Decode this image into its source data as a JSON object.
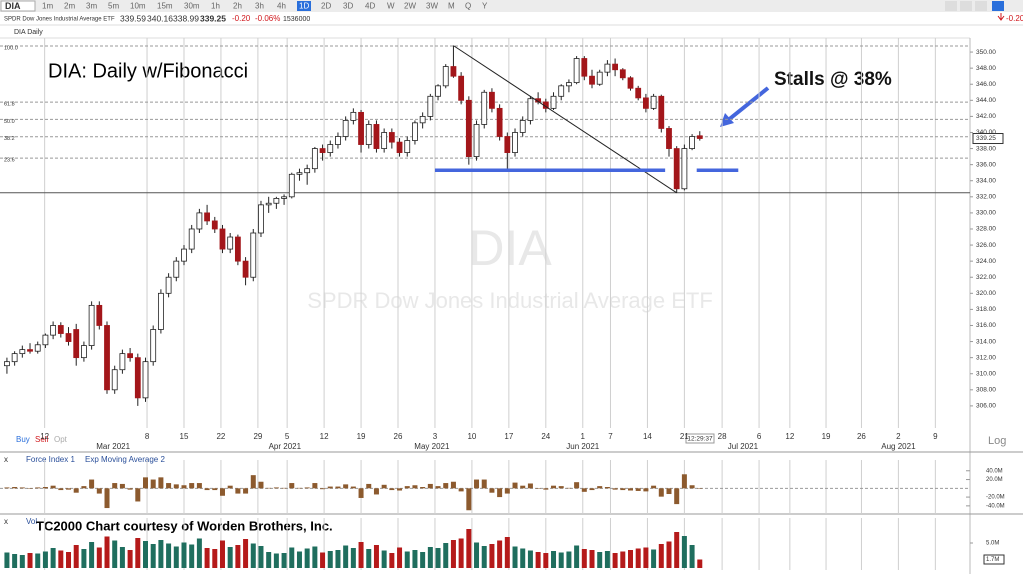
{
  "toolbar": {
    "symbol": "DIA",
    "timeframes": [
      "1m",
      "2m",
      "3m",
      "5m",
      "10m",
      "15m",
      "30m",
      "1h",
      "2h",
      "3h",
      "4h",
      "1D",
      "2D",
      "3D",
      "4D",
      "W",
      "2W",
      "3W",
      "M",
      "Q",
      "Y"
    ],
    "active_index": 11
  },
  "quote": {
    "name": "SPDR Dow Jones Industrial Average ETF",
    "open": "339.59",
    "high": "340.16",
    "low": "338.99",
    "last": "339.25",
    "change": "-0.20",
    "change_pct": "-0.06%",
    "volume": "1536000"
  },
  "order_buttons": [
    "Buy",
    "Sell",
    "Opt"
  ],
  "scale_mode": "Log",
  "chart_data": [
    {
      "type": "candlestick",
      "title": "DIA Daily",
      "annotations": {
        "heading": "DIA:  Daily w/Fibonacci",
        "note": "Stalls @ 38%",
        "time": "12:29:37"
      },
      "watermark": {
        "symbol": "DIA",
        "name": "SPDR Dow Jones Industrial Average ETF"
      },
      "series": [
        {
          "name": "DIA",
          "up_color": "#ffffff",
          "down_color": "#a3161a",
          "open": [
            311,
            311.5,
            312.5,
            313,
            312.8,
            313.6,
            314.8,
            316,
            315,
            315.5,
            312,
            313.5,
            318.5,
            316,
            308,
            310.5,
            312.5,
            312,
            307,
            311.5,
            315.5,
            320,
            322,
            324,
            325.5,
            328,
            330,
            329,
            328,
            325.5,
            327,
            324,
            322,
            327.5,
            331,
            331.2,
            331.8,
            332,
            334.8,
            335,
            335.5,
            338,
            337.5,
            338.5,
            339.5,
            341.5,
            342.5,
            338.5,
            341,
            338,
            340,
            338.8,
            337.5,
            339,
            341.2,
            342,
            344.5,
            345.8,
            348.2,
            347,
            344,
            337,
            341,
            345,
            343,
            339.5,
            337.5,
            340,
            341.5,
            344.2,
            343.8,
            343,
            344.5,
            345.8,
            346.2,
            349.2,
            347,
            346,
            347.5,
            348.5,
            347.8,
            346.8,
            345.5,
            344.3,
            343,
            344.5,
            340.5,
            338,
            333,
            338,
            339.59
          ],
          "high": [
            312,
            312.8,
            313.5,
            313.8,
            314,
            315,
            316.5,
            316.4,
            315.8,
            316.2,
            314,
            319,
            319,
            316.5,
            311,
            313,
            313.2,
            312.5,
            312,
            316,
            320.5,
            322.5,
            324.5,
            326,
            328.5,
            330.5,
            331,
            329.5,
            328.5,
            327.5,
            327.3,
            324.5,
            328,
            331.5,
            332,
            332,
            332.3,
            335,
            335.5,
            336,
            338.2,
            338.5,
            339,
            340,
            342,
            343,
            342.8,
            341.5,
            341.5,
            340.5,
            340.5,
            339.3,
            339.5,
            341.5,
            342.5,
            344.8,
            346,
            348.5,
            350.8,
            347.5,
            344.5,
            341.5,
            345.3,
            345.5,
            343.5,
            340,
            340.5,
            342,
            344.5,
            345,
            344.2,
            345,
            346,
            346.6,
            349.5,
            349.5,
            347.8,
            347.8,
            349,
            349.2,
            348,
            347,
            345.8,
            344.8,
            344.8,
            344.7,
            340.8,
            338.3,
            338.5,
            339.8,
            340.16
          ],
          "low": [
            310,
            311,
            312,
            312.5,
            312.5,
            313.2,
            314.3,
            314.5,
            313.5,
            311,
            311.5,
            313,
            315.5,
            307.5,
            307.5,
            310,
            311.5,
            306,
            306.5,
            311,
            315,
            319.5,
            321.5,
            323.5,
            325,
            327.5,
            328.5,
            327.5,
            325,
            325,
            323.5,
            321,
            321.5,
            327,
            330,
            330.5,
            331,
            331.8,
            334,
            333.5,
            335,
            336.5,
            337,
            338,
            339,
            341,
            337.5,
            338,
            337.5,
            337.5,
            338,
            337,
            337,
            338.5,
            340.5,
            341.5,
            344,
            345.5,
            346.8,
            343.5,
            336,
            336.5,
            340.5,
            342.5,
            339,
            335.2,
            337,
            339.5,
            341,
            343.5,
            342.5,
            342.8,
            344,
            345,
            346,
            346.5,
            345.5,
            345.8,
            347,
            347,
            346.5,
            345.2,
            344,
            342.5,
            342.8,
            340,
            337,
            332.5,
            332.8,
            337.8,
            338.99
          ],
          "close": [
            311.5,
            312.5,
            313,
            312.8,
            313.6,
            314.8,
            316,
            315,
            314,
            312,
            313.5,
            318.5,
            316,
            308,
            310.5,
            312.5,
            312,
            307,
            311.5,
            315.5,
            320,
            322,
            324,
            325.5,
            328,
            330,
            329,
            328,
            325.5,
            327,
            324,
            322,
            327.5,
            331,
            331.2,
            331.8,
            332,
            334.8,
            335,
            335.5,
            338,
            337.5,
            338.5,
            339.5,
            341.5,
            342.5,
            338.5,
            341,
            338,
            340,
            338.8,
            337.5,
            339,
            341.2,
            342,
            344.5,
            345.8,
            348.2,
            347,
            344,
            337,
            341,
            345,
            343,
            339.5,
            337.5,
            340,
            341.5,
            344.2,
            343.8,
            343,
            344.5,
            345.8,
            346.2,
            349.2,
            347,
            346,
            347.5,
            348.5,
            347.8,
            346.8,
            345.5,
            344.3,
            343,
            344.5,
            340.5,
            338,
            333,
            338,
            339.5,
            339.25
          ]
        }
      ],
      "xlim": [
        -0.9,
        125.1
      ],
      "xticks": [
        {
          "value": 4.9,
          "label": "12"
        },
        {
          "value": 18.2,
          "label": "8"
        },
        {
          "value": 23,
          "label": "15"
        },
        {
          "value": 27.8,
          "label": "22"
        },
        {
          "value": 32.6,
          "label": "29"
        },
        {
          "value": 36.4,
          "label": "5"
        },
        {
          "value": 41.2,
          "label": "12"
        },
        {
          "value": 46,
          "label": "19"
        },
        {
          "value": 50.8,
          "label": "26"
        },
        {
          "value": 55.6,
          "label": "3"
        },
        {
          "value": 60.4,
          "label": "10"
        },
        {
          "value": 65.2,
          "label": "17"
        },
        {
          "value": 70,
          "label": "24"
        },
        {
          "value": 74.8,
          "label": "1"
        },
        {
          "value": 78.4,
          "label": "7"
        },
        {
          "value": 83.2,
          "label": "14"
        },
        {
          "value": 88,
          "label": "21"
        },
        {
          "value": 92.9,
          "label": "28"
        },
        {
          "value": 97.7,
          "label": "6"
        },
        {
          "value": 101.7,
          "label": "12"
        },
        {
          "value": 106.4,
          "label": "19"
        },
        {
          "value": 111,
          "label": "26"
        },
        {
          "value": 115.8,
          "label": "2"
        },
        {
          "value": 120.6,
          "label": "9"
        }
      ],
      "month_ticks": [
        {
          "value": 13.8,
          "label": "Mar 2021"
        },
        {
          "value": 36.1,
          "label": "Apr 2021"
        },
        {
          "value": 55.2,
          "label": "May 2021"
        },
        {
          "value": 74.8,
          "label": "Jun 2021"
        },
        {
          "value": 95.6,
          "label": "Jul 2021"
        },
        {
          "value": 115.8,
          "label": "Aug 2021"
        }
      ],
      "ylim": [
        303.5,
        351.5
      ],
      "yticks": [
        {
          "value": 306,
          "label": "306.00"
        },
        {
          "value": 308,
          "label": "308.00"
        },
        {
          "value": 310,
          "label": "310.00"
        },
        {
          "value": 312,
          "label": "312.00"
        },
        {
          "value": 314,
          "label": "314.00"
        },
        {
          "value": 316,
          "label": "316.00"
        },
        {
          "value": 318,
          "label": "318.00"
        },
        {
          "value": 320,
          "label": "320.00"
        },
        {
          "value": 322,
          "label": "322.00"
        },
        {
          "value": 324,
          "label": "324.00"
        },
        {
          "value": 326,
          "label": "326.00"
        },
        {
          "value": 328,
          "label": "328.00"
        },
        {
          "value": 330,
          "label": "330.00"
        },
        {
          "value": 332,
          "label": "332.00"
        },
        {
          "value": 334,
          "label": "334.00"
        },
        {
          "value": 336,
          "label": "336.00"
        },
        {
          "value": 338,
          "label": "338.00"
        },
        {
          "value": 340,
          "label": "340.00"
        },
        {
          "value": 342,
          "label": "342.00"
        },
        {
          "value": 344,
          "label": "344.00"
        },
        {
          "value": 346,
          "label": "346.00"
        },
        {
          "value": 348,
          "label": "348.00"
        },
        {
          "value": 350,
          "label": "350.00"
        }
      ],
      "fib_levels": [
        {
          "value": 350.75,
          "label": "100.0"
        },
        {
          "value": 343.78,
          "label": "61.8"
        },
        {
          "value": 341.63,
          "label": "50.0"
        },
        {
          "value": 339.47,
          "label": "38.2"
        },
        {
          "value": 336.81,
          "label": "23.6"
        }
      ],
      "fib_base": 332.5,
      "drawings": {
        "trendline": {
          "x": [
            58,
            87
          ],
          "y": [
            350.8,
            332.5
          ],
          "color": "#222222"
        },
        "support": {
          "y": 335.3,
          "color": "#4466dd",
          "segments": [
            [
              55.6,
              85.5
            ],
            [
              89.6,
              95
            ]
          ]
        }
      }
    },
    {
      "type": "bar",
      "series": [
        {
          "name": "Force Index 1",
          "color": "#8c5a2e",
          "values": [
            2,
            3,
            2,
            -1,
            2,
            3,
            6,
            -4,
            -3,
            -10,
            5,
            20,
            -12,
            -45,
            12,
            10,
            -3,
            -30,
            25,
            20,
            25,
            12,
            9,
            7,
            12,
            12,
            -4,
            -4,
            -17,
            6,
            -12,
            -12,
            30,
            15,
            1,
            2,
            1,
            12,
            1,
            2,
            12,
            -2,
            4,
            4,
            9,
            4,
            -22,
            10,
            -14,
            8,
            -4,
            -5,
            5,
            7,
            3,
            10,
            5,
            12,
            15,
            -7,
            -50,
            20,
            20,
            -10,
            -20,
            -12,
            13,
            6,
            11,
            -1,
            -3,
            6,
            5,
            1,
            14,
            -8,
            -4,
            5,
            3,
            -3,
            -4,
            -5,
            -6,
            -7,
            6,
            -19,
            -13,
            -36,
            32,
            7,
            -0.5
          ]
        }
      ],
      "overlay_label": "Exp Moving Average 2",
      "xlim": [
        -0.9,
        125.1
      ],
      "ylim": [
        -54,
        60
      ],
      "yticks": [
        {
          "value": 40,
          "label": "40.0M"
        },
        {
          "value": 20,
          "label": "20.0M"
        },
        {
          "value": -20,
          "label": "-20.0M"
        },
        {
          "value": -40,
          "label": "-40.0M"
        }
      ]
    },
    {
      "type": "volume",
      "title": "Vol",
      "annotation": "TC2000 Chart courtesy of Worden Brothers, Inc.",
      "series": [
        {
          "up_color": "#1f6e5e",
          "down_color": "#b51a1a",
          "values": [
            3.1,
            2.8,
            2.6,
            3.0,
            2.9,
            3.3,
            4.0,
            3.5,
            3.2,
            4.6,
            3.8,
            5.2,
            4.1,
            6.3,
            5.5,
            4.2,
            3.6,
            6.0,
            5.4,
            4.8,
            5.6,
            4.9,
            4.3,
            5.1,
            4.7,
            5.9,
            4.0,
            3.8,
            5.5,
            4.2,
            4.6,
            5.8,
            4.9,
            4.4,
            3.2,
            2.9,
            3.0,
            4.1,
            3.3,
            3.9,
            4.3,
            3.1,
            3.4,
            3.6,
            4.5,
            4.0,
            5.2,
            3.8,
            4.6,
            3.5,
            3.0,
            4.1,
            3.3,
            3.6,
            3.2,
            4.2,
            4.0,
            5.0,
            5.6,
            5.9,
            7.8,
            5.1,
            4.4,
            4.8,
            5.5,
            6.2,
            4.3,
            3.9,
            3.5,
            3.2,
            3.0,
            3.4,
            3.1,
            3.3,
            4.5,
            3.8,
            3.6,
            3.2,
            3.4,
            3.0,
            3.3,
            3.6,
            3.9,
            4.1,
            3.7,
            4.8,
            5.3,
            7.2,
            6.4,
            4.6,
            1.7
          ],
          "last_label": "1.7M"
        }
      ],
      "xlim": [
        -0.9,
        125.1
      ],
      "ylim": [
        0,
        9.6
      ],
      "yticks": [
        {
          "value": 5,
          "label": "5.0M"
        }
      ]
    }
  ]
}
